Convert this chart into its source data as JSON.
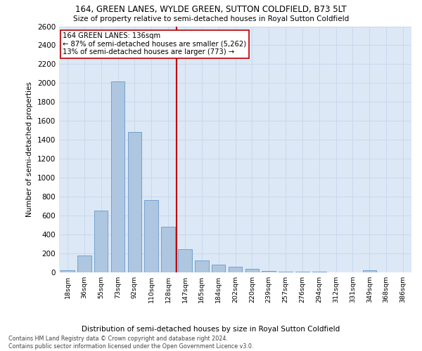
{
  "title1": "164, GREEN LANES, WYLDE GREEN, SUTTON COLDFIELD, B73 5LT",
  "title2": "Size of property relative to semi-detached houses in Royal Sutton Coldfield",
  "xlabel": "Distribution of semi-detached houses by size in Royal Sutton Coldfield",
  "ylabel": "Number of semi-detached properties",
  "footnote": "Contains HM Land Registry data © Crown copyright and database right 2024.\nContains public sector information licensed under the Open Government Licence v3.0.",
  "bar_labels": [
    "18sqm",
    "36sqm",
    "55sqm",
    "73sqm",
    "92sqm",
    "110sqm",
    "128sqm",
    "147sqm",
    "165sqm",
    "184sqm",
    "202sqm",
    "220sqm",
    "239sqm",
    "257sqm",
    "276sqm",
    "294sqm",
    "312sqm",
    "331sqm",
    "349sqm",
    "368sqm",
    "386sqm"
  ],
  "bar_values": [
    20,
    175,
    650,
    2020,
    1480,
    760,
    480,
    240,
    125,
    80,
    55,
    30,
    10,
    5,
    5,
    5,
    0,
    0,
    20,
    0,
    0
  ],
  "bar_color": "#aec6e0",
  "bar_edge_color": "#6699cc",
  "property_label": "164 GREEN LANES: 136sqm",
  "annotation_line1": "← 87% of semi-detached houses are smaller (5,262)",
  "annotation_line2": "13% of semi-detached houses are larger (773) →",
  "vline_color": "#bb0000",
  "annotation_box_color": "#ffffff",
  "annotation_box_edge": "#bb0000",
  "ylim": [
    0,
    2600
  ],
  "yticks": [
    0,
    200,
    400,
    600,
    800,
    1000,
    1200,
    1400,
    1600,
    1800,
    2000,
    2200,
    2400,
    2600
  ],
  "grid_color": "#c8d8ec",
  "background_color": "#dce8f5"
}
